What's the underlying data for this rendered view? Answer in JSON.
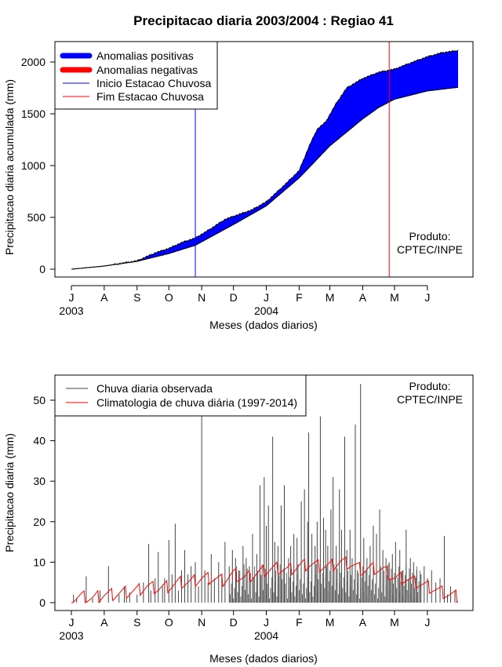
{
  "title": "Precipitacao diaria 2003/2004 : Regiao 41",
  "colors": {
    "positive": "#0000ff",
    "negative": "#ff0000",
    "observed": "#444444",
    "climatology": "#ff0000",
    "onset": "#0000ff",
    "end": "#ff0000"
  },
  "chart_data": [
    {
      "type": "area",
      "ylabel": "Precipitacao diaria acumulada (mm)",
      "xlabel": "Meses (dados diarios)",
      "ylim": [
        0,
        2150
      ],
      "yticks": [
        0,
        500,
        1000,
        1500,
        2000
      ],
      "xticks": [
        {
          "label": "J",
          "day": 0
        },
        {
          "label": "A",
          "day": 31
        },
        {
          "label": "S",
          "day": 62
        },
        {
          "label": "O",
          "day": 92
        },
        {
          "label": "N",
          "day": 123
        },
        {
          "label": "D",
          "day": 153
        },
        {
          "label": "J",
          "day": 184
        },
        {
          "label": "F",
          "day": 215
        },
        {
          "label": "M",
          "day": 244
        },
        {
          "label": "A",
          "day": 275
        },
        {
          "label": "M",
          "day": 305
        },
        {
          "label": "J",
          "day": 336
        }
      ],
      "year_labels": [
        {
          "label": "2003",
          "day": 0
        },
        {
          "label": "2004",
          "day": 184
        }
      ],
      "legend": {
        "position": "top-left",
        "entries": [
          "Anomalias positivas",
          "Anomalias negativas",
          "Inicio Estacao Chuvosa",
          "Fim Estacao Chuvosa"
        ]
      },
      "vlines": [
        {
          "name": "Inicio Estacao Chuvosa",
          "day": 117
        },
        {
          "name": "Fim Estacao Chuvosa",
          "day": 300
        }
      ],
      "observed_cumulative": {
        "day": [
          0,
          31,
          62,
          80,
          92,
          105,
          117,
          130,
          145,
          153,
          170,
          184,
          200,
          215,
          225,
          232,
          240,
          250,
          260,
          275,
          290,
          305,
          320,
          336,
          350,
          365
        ],
        "value": [
          0,
          30,
          80,
          160,
          200,
          260,
          300,
          380,
          480,
          510,
          570,
          650,
          800,
          950,
          1200,
          1350,
          1420,
          1600,
          1750,
          1840,
          1900,
          1930,
          1990,
          2050,
          2090,
          2110
        ]
      },
      "climatology_cumulative": {
        "day": [
          0,
          31,
          62,
          92,
          117,
          153,
          184,
          215,
          244,
          275,
          290,
          305,
          336,
          365
        ],
        "value": [
          0,
          30,
          75,
          150,
          230,
          430,
          610,
          880,
          1190,
          1450,
          1560,
          1640,
          1720,
          1755
        ]
      },
      "annotation": "Produto:\nCPTEC/INPE",
      "annotation_lines": [
        "Produto:",
        "CPTEC/INPE"
      ]
    },
    {
      "type": "bar",
      "ylabel": "Precipitacao diaria (mm)",
      "xlabel": "Meses (dados diarios)",
      "ylim": [
        0,
        55
      ],
      "yticks": [
        0,
        10,
        20,
        30,
        40,
        50
      ],
      "xticks": [
        {
          "label": "J",
          "day": 0
        },
        {
          "label": "A",
          "day": 31
        },
        {
          "label": "S",
          "day": 62
        },
        {
          "label": "O",
          "day": 92
        },
        {
          "label": "N",
          "day": 123
        },
        {
          "label": "D",
          "day": 153
        },
        {
          "label": "J",
          "day": 184
        },
        {
          "label": "F",
          "day": 215
        },
        {
          "label": "M",
          "day": 244
        },
        {
          "label": "A",
          "day": 275
        },
        {
          "label": "M",
          "day": 305
        },
        {
          "label": "J",
          "day": 336
        }
      ],
      "year_labels": [
        {
          "label": "2003",
          "day": 0
        },
        {
          "label": "2004",
          "day": 184
        }
      ],
      "legend": {
        "position": "top-left",
        "entries": [
          "Chuva diaria observada",
          "Climatologia de chuva diária (1997-2014)"
        ]
      },
      "observed_daily": {
        "day": [
          2,
          5,
          14,
          20,
          27,
          35,
          45,
          50,
          52,
          55,
          62,
          68,
          73,
          75,
          79,
          82,
          86,
          88,
          92,
          95,
          98,
          101,
          104,
          107,
          110,
          113,
          117,
          120,
          123,
          126,
          129,
          132,
          135,
          139,
          142,
          145,
          149,
          152,
          155,
          158,
          162,
          165,
          168,
          171,
          175,
          178,
          180,
          182,
          184,
          186,
          190,
          192,
          195,
          198,
          201,
          205,
          207,
          210,
          213,
          217,
          220,
          223,
          224,
          227,
          230,
          232,
          235,
          238,
          240,
          242,
          245,
          247,
          250,
          253,
          255,
          258,
          260,
          263,
          265,
          268,
          270,
          273,
          276,
          279,
          282,
          285,
          288,
          291,
          294,
          297,
          300,
          303,
          306,
          310,
          313,
          316,
          320,
          323,
          326,
          330,
          333,
          336,
          340,
          344,
          348,
          352,
          355,
          358,
          362
        ],
        "value": [
          2,
          1,
          6.5,
          1,
          3,
          9,
          2,
          4,
          1,
          2.5,
          2,
          5,
          14.5,
          3,
          6,
          12.5,
          4,
          6,
          15.5,
          7,
          19.5,
          3,
          8,
          13,
          7,
          9,
          10,
          4,
          46.5,
          8,
          5,
          12,
          6,
          10,
          7,
          15,
          9,
          13,
          11,
          8,
          14,
          11,
          9,
          17,
          12,
          29,
          7,
          31,
          19,
          24,
          41,
          15,
          14,
          24,
          29,
          11,
          14,
          17,
          16,
          25,
          28,
          20,
          42,
          17,
          14,
          20,
          46,
          21,
          18,
          14,
          23,
          31,
          14,
          28,
          18,
          41,
          13,
          18,
          11,
          44,
          8,
          54,
          16,
          11,
          14,
          19,
          17,
          23,
          13,
          11,
          10,
          12,
          15,
          13,
          8,
          18,
          11,
          10,
          8,
          7,
          9,
          6,
          8,
          5,
          6,
          16.5,
          2,
          4,
          3
        ]
      },
      "climatology_daily": {
        "day": [
          0,
          10,
          20,
          31,
          40,
          50,
          62,
          72,
          82,
          92,
          102,
          112,
          123,
          133,
          143,
          153,
          163,
          173,
          184,
          194,
          204,
          215,
          225,
          235,
          244,
          254,
          264,
          275,
          285,
          295,
          305,
          315,
          325,
          336,
          346,
          356,
          365
        ],
        "value": [
          1,
          1.5,
          1,
          2,
          2,
          2.5,
          3,
          4,
          3.5,
          4,
          5,
          5,
          6,
          6,
          5.5,
          7,
          6,
          7,
          8,
          8.5,
          8,
          9,
          9.5,
          9,
          9,
          10,
          9.5,
          8,
          8.5,
          8,
          6,
          6,
          5,
          4,
          3,
          2,
          1.5
        ]
      },
      "annotation": "Produto:\nCPTEC/INPE",
      "annotation_lines": [
        "Produto:",
        "CPTEC/INPE"
      ]
    }
  ]
}
